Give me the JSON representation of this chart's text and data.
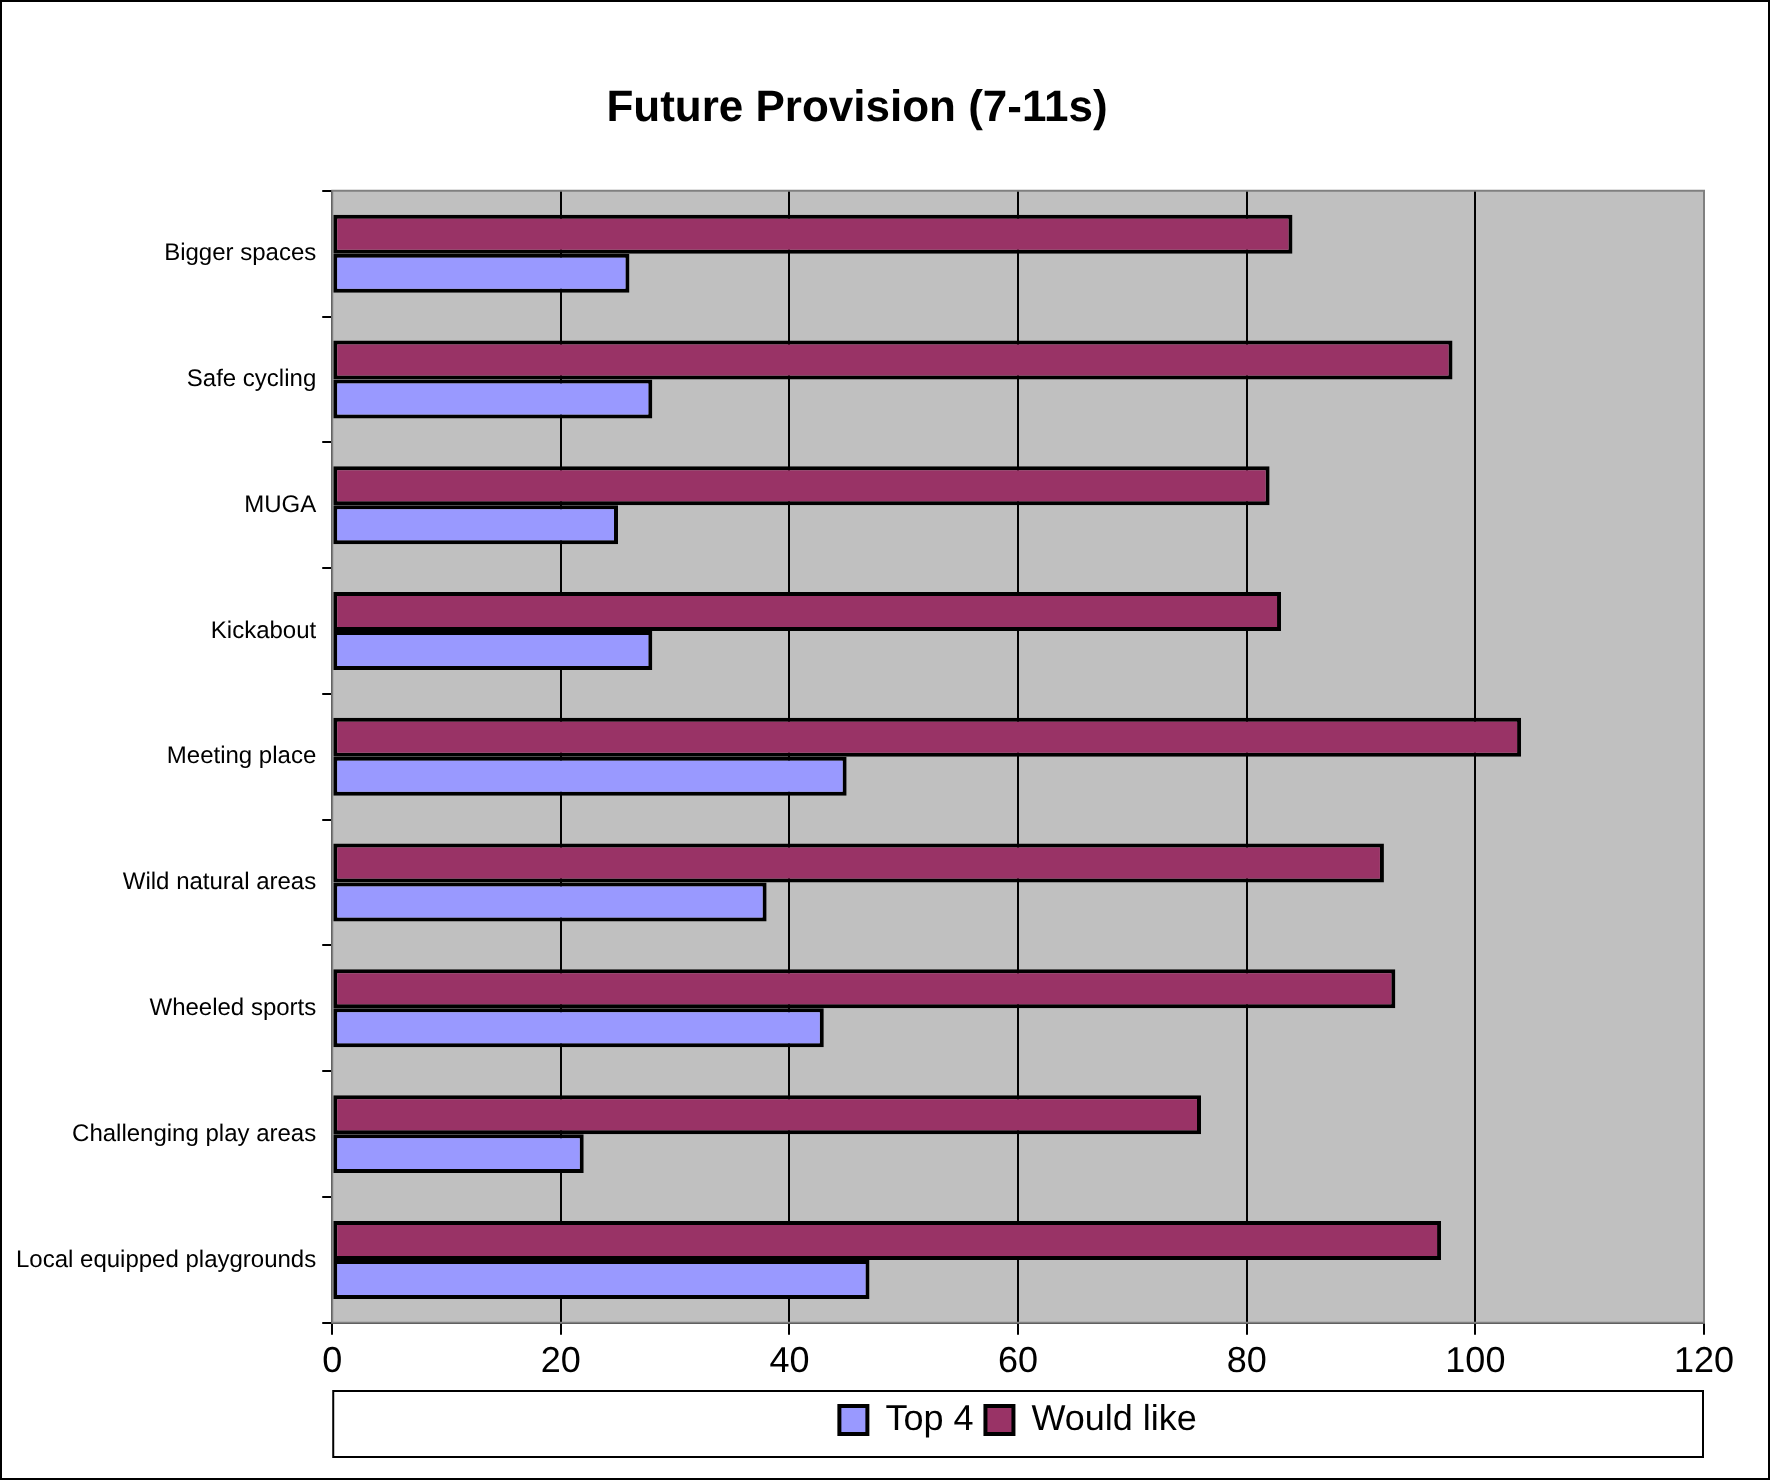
{
  "chart_data": {
    "type": "bar",
    "orientation": "horizontal",
    "title": "Future Provision (7-11s)",
    "categories": [
      "Bigger spaces",
      "Safe cycling",
      "MUGA",
      "Kickabout",
      "Meeting place",
      "Wild natural areas",
      "Wheeled sports",
      "Challenging play areas",
      "Local equipped playgrounds"
    ],
    "series": [
      {
        "name": "Top 4",
        "color": "#9999ff",
        "values": [
          26,
          28,
          25,
          28,
          45,
          38,
          43,
          22,
          47
        ]
      },
      {
        "name": "Would like",
        "color": "#993366",
        "values": [
          84,
          98,
          82,
          83,
          104,
          92,
          93,
          76,
          97
        ]
      }
    ],
    "xlim": [
      0,
      120
    ],
    "xticks": [
      0,
      20,
      40,
      60,
      80,
      100,
      120
    ],
    "grid": "x",
    "legend": "bottom"
  }
}
